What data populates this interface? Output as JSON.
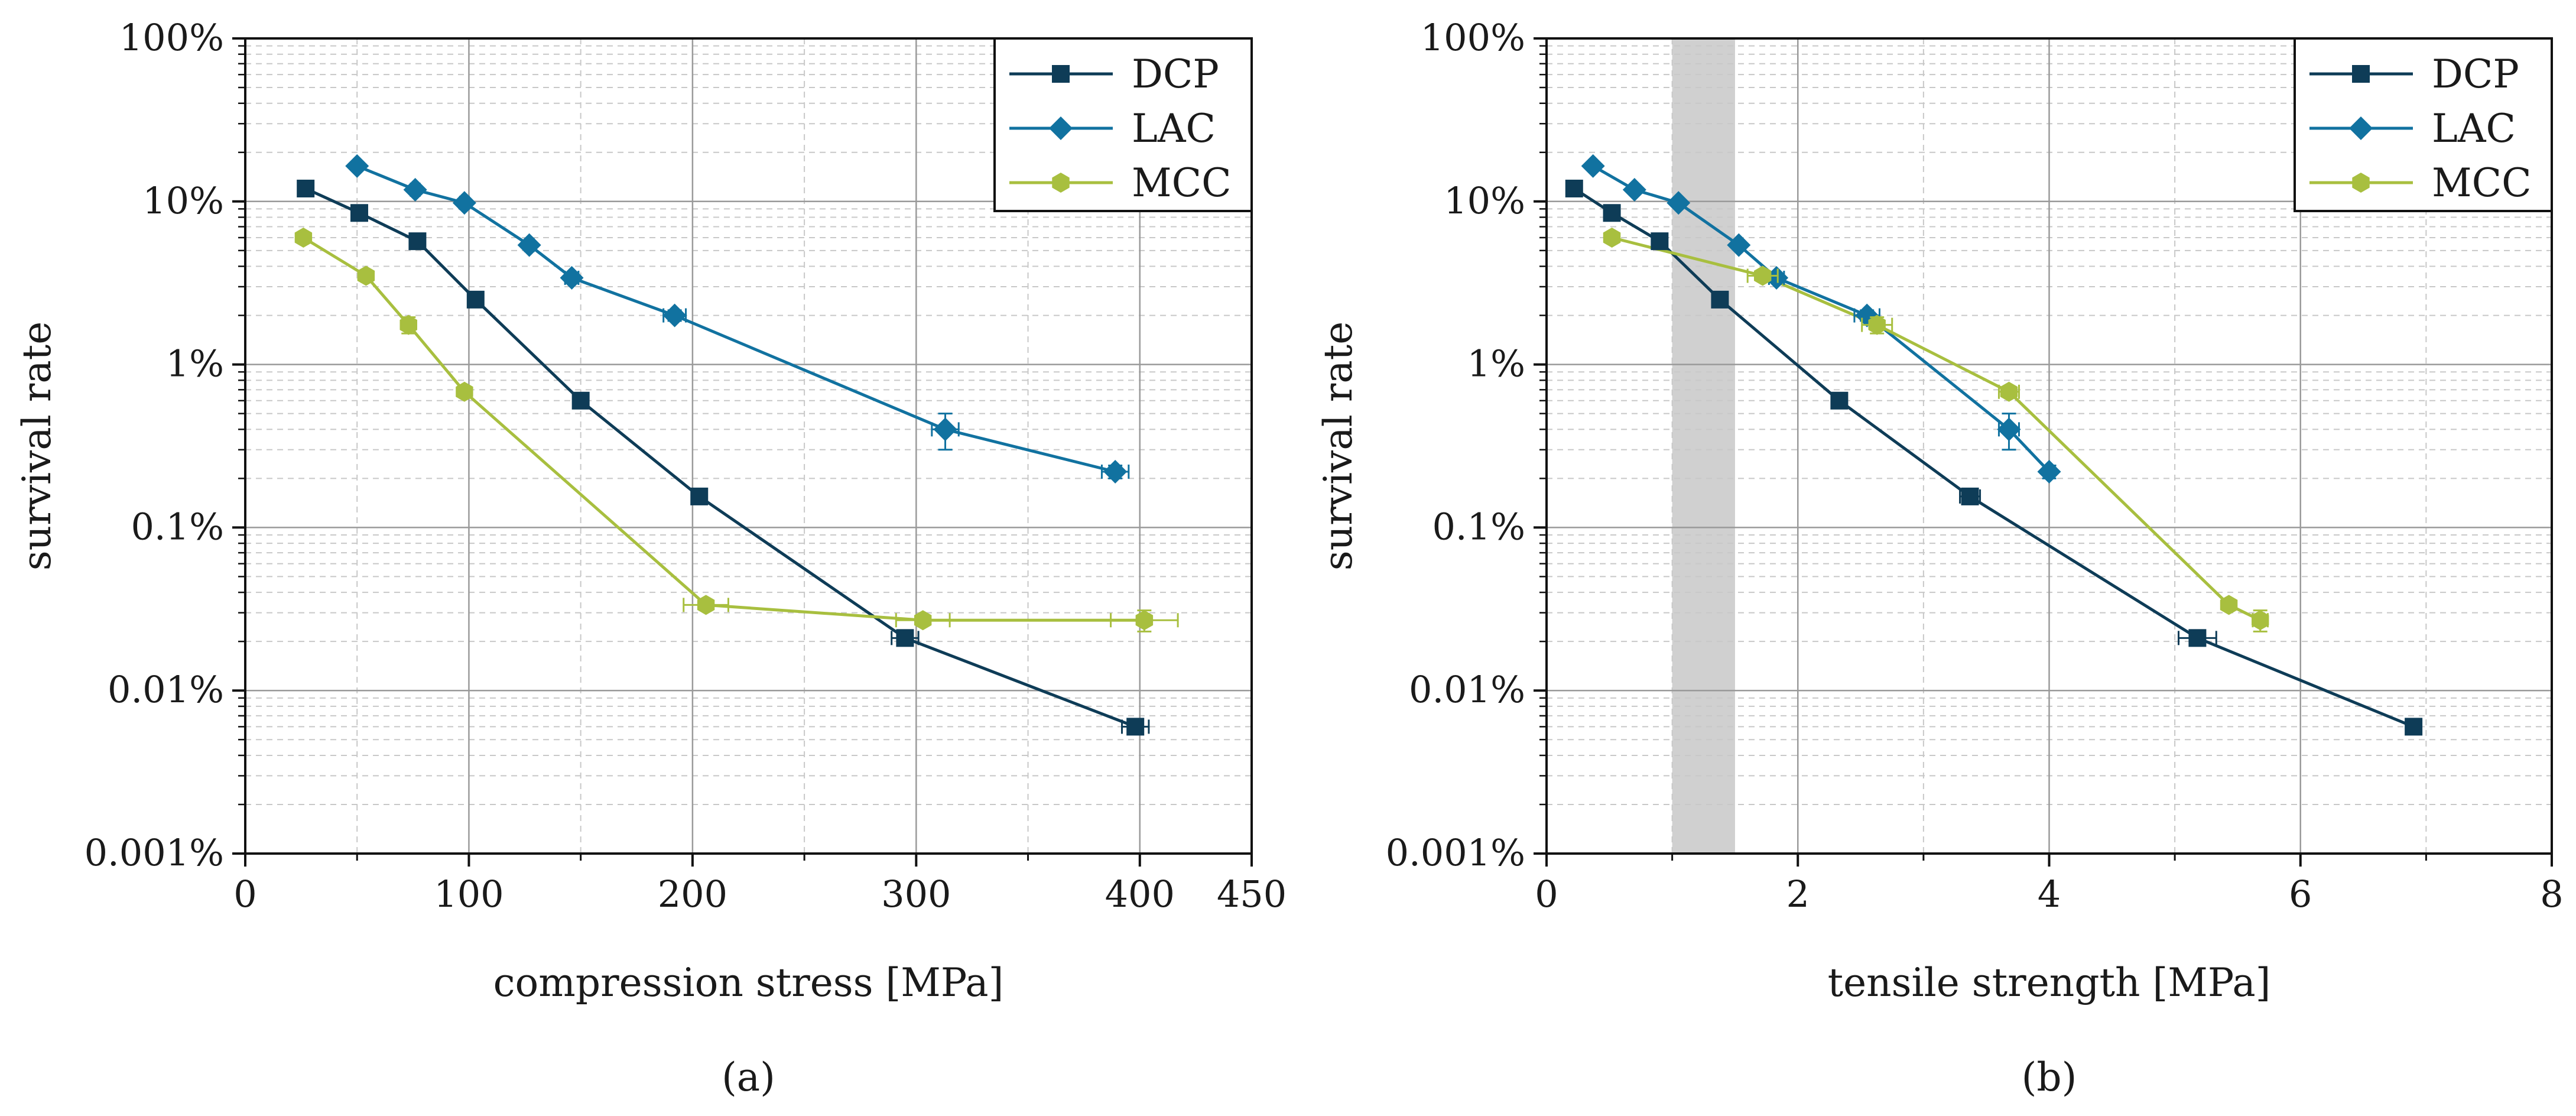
{
  "chart_data": [
    {
      "type": "line",
      "caption": "(a)",
      "xlabel": "compression stress [MPa]",
      "ylabel": "survival rate",
      "xlim": [
        0,
        450
      ],
      "ylim": [
        0.001,
        100
      ],
      "yscale": "log",
      "xticks": [
        0,
        100,
        200,
        300,
        400,
        450
      ],
      "xtick_labels": [
        "0",
        "100",
        "200",
        "300",
        "400",
        "450"
      ],
      "yticks": [
        0.001,
        0.01,
        0.1,
        1,
        10,
        100
      ],
      "ytick_labels": [
        "0.001%",
        "0.01%",
        "0.1%",
        "1%",
        "10%",
        "100%"
      ],
      "grid": true,
      "legend_position": "top-right",
      "series": [
        {
          "name": "DCP",
          "color": "#0e3c57",
          "marker": "square",
          "x": [
            27,
            51,
            77,
            103,
            150,
            203,
            295,
            398
          ],
          "y": [
            12,
            8.5,
            5.7,
            2.5,
            0.6,
            0.155,
            0.021,
            0.006
          ],
          "xerr": [
            2,
            2,
            2,
            2,
            2,
            3,
            6,
            6
          ],
          "yerr": [
            0,
            0,
            0,
            0,
            0,
            0.015,
            0,
            0
          ]
        },
        {
          "name": "LAC",
          "color": "#1172a0",
          "marker": "diamond",
          "x": [
            50,
            76,
            98,
            127,
            146,
            192,
            313,
            389
          ],
          "y": [
            16.5,
            11.8,
            9.8,
            5.4,
            3.4,
            2.0,
            0.4,
            0.22
          ],
          "xerr": [
            0,
            2,
            2,
            2,
            3,
            5,
            6,
            6
          ],
          "yerr": [
            0,
            0,
            0,
            0,
            0,
            0.15,
            0.1,
            0.02
          ]
        },
        {
          "name": "MCC",
          "color": "#a8bf3f",
          "marker": "hexagon",
          "x": [
            26,
            54,
            73,
            98,
            206,
            303,
            402
          ],
          "y": [
            6.0,
            3.5,
            1.75,
            0.68,
            0.0335,
            0.027,
            0.027
          ],
          "xerr": [
            2,
            2,
            2,
            2,
            10,
            12,
            15
          ],
          "yerr": [
            0,
            0,
            0.2,
            0,
            0,
            0,
            0.004
          ]
        }
      ]
    },
    {
      "type": "line",
      "caption": "(b)",
      "xlabel": "tensile strength [MPa]",
      "ylabel": "survival rate",
      "xlim": [
        0,
        8
      ],
      "ylim": [
        0.001,
        100
      ],
      "yscale": "log",
      "xticks": [
        0,
        2,
        4,
        6,
        8
      ],
      "xtick_labels": [
        "0",
        "2",
        "4",
        "6",
        "8"
      ],
      "yticks": [
        0.001,
        0.01,
        0.1,
        1,
        10,
        100
      ],
      "ytick_labels": [
        "0.001%",
        "0.01%",
        "0.1%",
        "1%",
        "10%",
        "100%"
      ],
      "grid": true,
      "legend_position": "top-right",
      "shaded_band": {
        "x": [
          1.0,
          1.5
        ],
        "color": "#d0d0d0"
      },
      "series": [
        {
          "name": "DCP",
          "color": "#0e3c57",
          "marker": "square",
          "x": [
            0.22,
            0.52,
            0.9,
            1.38,
            2.33,
            3.37,
            5.18,
            6.9
          ],
          "y": [
            12,
            8.5,
            5.7,
            2.5,
            0.6,
            0.155,
            0.021,
            0.006
          ],
          "xerr": [
            0,
            0,
            0,
            0,
            0.05,
            0.08,
            0.15,
            0
          ],
          "yerr": [
            0,
            0,
            0,
            0,
            0,
            0.015,
            0,
            0
          ]
        },
        {
          "name": "LAC",
          "color": "#1172a0",
          "marker": "diamond",
          "x": [
            0.37,
            0.7,
            1.05,
            1.53,
            1.83,
            2.55,
            3.68,
            4.0
          ],
          "y": [
            16.5,
            11.8,
            9.8,
            5.4,
            3.4,
            2.0,
            0.4,
            0.22
          ],
          "xerr": [
            0,
            0,
            0,
            0,
            0.06,
            0.1,
            0.08,
            0
          ],
          "yerr": [
            0,
            0,
            0,
            0,
            0,
            0.15,
            0.1,
            0.02
          ]
        },
        {
          "name": "MCC",
          "color": "#a8bf3f",
          "marker": "hexagon",
          "x": [
            0.52,
            1.72,
            2.63,
            3.68,
            5.43,
            5.68
          ],
          "y": [
            6.0,
            3.5,
            1.75,
            0.68,
            0.0335,
            0.027
          ],
          "xerr": [
            0,
            0.12,
            0.12,
            0.08,
            0,
            0.06
          ],
          "yerr": [
            0,
            0,
            0.2,
            0,
            0,
            0.004
          ]
        }
      ]
    }
  ]
}
